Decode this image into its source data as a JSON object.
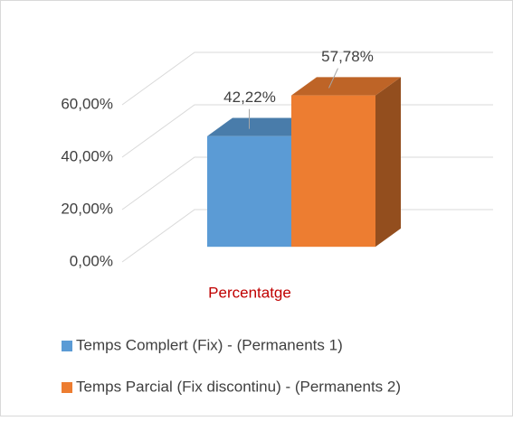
{
  "chart_data": {
    "type": "bar3d",
    "categories": [
      "Percentatge"
    ],
    "series": [
      {
        "name": "Temps Complert (Fix) - (Permanents 1)",
        "color": "#5b9bd5",
        "values": [
          42.22
        ],
        "value_labels": [
          "42,22%"
        ]
      },
      {
        "name": "Temps Parcial (Fix discontinu) - (Permanents 2)",
        "color": "#ed7d31",
        "values": [
          57.78
        ],
        "value_labels": [
          "57,78%"
        ]
      }
    ],
    "ylim": [
      0,
      60
    ],
    "yticks": [
      {
        "value": 0,
        "label": "0,00%"
      },
      {
        "value": 20,
        "label": "20,00%"
      },
      {
        "value": 40,
        "label": "40,00%"
      },
      {
        "value": 60,
        "label": "60,00%"
      }
    ],
    "grid": true,
    "legend": "bottom"
  }
}
